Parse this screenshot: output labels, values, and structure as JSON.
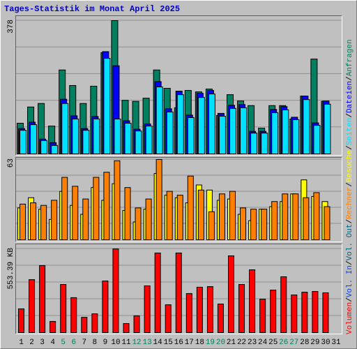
{
  "title": "Tages-Statistik im Monat April 2025",
  "title_color": "#0000c0",
  "legend_separator": "/",
  "chart_data": [
    {
      "type": "bar",
      "ylim": [
        0,
        378
      ],
      "yticks": [
        378
      ],
      "series": [
        {
          "name": "Anfragen",
          "color": "#008060",
          "values": [
            87,
            133,
            143,
            79,
            238,
            194,
            143,
            192,
            287,
            378,
            152,
            149,
            158,
            238,
            186,
            131,
            180,
            176,
            184,
            109,
            168,
            150,
            137,
            73,
            137,
            137,
            99,
            164,
            269,
            149,
            null
          ]
        },
        {
          "name": "Dateien",
          "color": "#0000ff",
          "values": [
            72,
            90,
            42,
            32,
            155,
            108,
            72,
            106,
            290,
            250,
            94,
            70,
            85,
            205,
            128,
            178,
            110,
            172,
            180,
            115,
            138,
            140,
            64,
            64,
            126,
            134,
            104,
            164,
            88,
            150,
            null
          ]
        },
        {
          "name": "Seiten",
          "color": "#00e0ff",
          "values": [
            67,
            83,
            38,
            24,
            143,
            99,
            67,
            99,
            271,
            99,
            87,
            65,
            79,
            190,
            119,
            168,
            103,
            160,
            170,
            107,
            129,
            131,
            59,
            59,
            117,
            125,
            97,
            154,
            81,
            141,
            null
          ]
        }
      ]
    },
    {
      "type": "bar",
      "ylim": [
        0,
        63
      ],
      "yticks": [
        63
      ],
      "series": [
        {
          "name": "Besuche",
          "color": "#ffff00",
          "values": [
            25,
            33,
            24,
            16,
            38,
            27,
            20,
            41,
            31,
            44,
            23,
            14,
            24,
            52,
            35,
            33,
            29,
            43,
            39,
            31,
            32,
            20,
            15,
            24,
            26,
            30,
            36,
            47,
            34,
            30,
            null
          ]
        },
        {
          "name": "Rechner",
          "color": "#ff8000",
          "values": [
            28,
            29,
            27,
            31,
            49,
            42,
            32,
            49,
            53,
            62,
            41,
            25,
            32,
            63,
            38,
            35,
            50,
            39,
            22,
            36,
            38,
            25,
            24,
            24,
            30,
            36,
            36,
            33,
            37,
            26,
            null
          ]
        }
      ]
    },
    {
      "type": "bar",
      "ylim": [
        0,
        553.39
      ],
      "yticks": [
        {
          "value": 553.39,
          "label": "553.39 KB"
        }
      ],
      "categories": [
        "1",
        "2",
        "3",
        "4",
        "5",
        "6",
        "7",
        "8",
        "9",
        "10",
        "11",
        "12",
        "13",
        "14",
        "15",
        "16",
        "17",
        "18",
        "19",
        "20",
        "21",
        "22",
        "23",
        "24",
        "25",
        "26",
        "27",
        "28",
        "29",
        "30",
        "31"
      ],
      "category_colors": [
        "#000000",
        "#000000",
        "#000000",
        "#000000",
        "#008060",
        "#008060",
        "#000000",
        "#000000",
        "#000000",
        "#000000",
        "#000000",
        "#008060",
        "#008060",
        "#000000",
        "#000000",
        "#000000",
        "#000000",
        "#000000",
        "#008060",
        "#008060",
        "#000000",
        "#000000",
        "#000000",
        "#000000",
        "#000000",
        "#008060",
        "#008060",
        "#000000",
        "#000000",
        "#000000",
        "#000000"
      ],
      "series": [
        {
          "name": "Volumen",
          "color": "#ff0000",
          "values": [
            157,
            350,
            443,
            74,
            318,
            231,
            101,
            124,
            341,
            553,
            60,
            111,
            309,
            526,
            184,
            526,
            258,
            300,
            304,
            189,
            507,
            318,
            415,
            221,
            281,
            369,
            249,
            267,
            272,
            263,
            null
          ]
        },
        {
          "name": "Vol. In",
          "color": "#0040ff"
        },
        {
          "name": "Vol. Out",
          "color": "#006080"
        }
      ]
    }
  ]
}
